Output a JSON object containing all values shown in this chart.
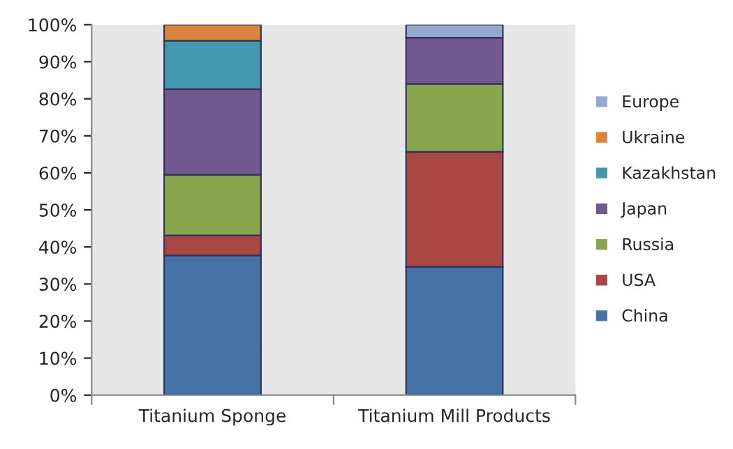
{
  "chart_data": {
    "type": "bar",
    "stacked": true,
    "categories": [
      "Titanium Sponge",
      "Titanium Mill Products"
    ],
    "series": [
      {
        "name": "China",
        "color": "#4572a7",
        "values": [
          37.7,
          34.6
        ]
      },
      {
        "name": "USA",
        "color": "#aa4643",
        "values": [
          5.4,
          31.1
        ]
      },
      {
        "name": "Russia",
        "color": "#89a54e",
        "values": [
          16.4,
          18.3
        ]
      },
      {
        "name": "Japan",
        "color": "#71588f",
        "values": [
          23.1,
          12.5
        ]
      },
      {
        "name": "Kazakhstan",
        "color": "#4198af",
        "values": [
          13.1,
          null
        ]
      },
      {
        "name": "Ukraine",
        "color": "#db843d",
        "values": [
          4.3,
          null
        ]
      },
      {
        "name": "Europe",
        "color": "#93a9cf",
        "values": [
          null,
          3.5
        ]
      }
    ],
    "ylim": [
      0,
      100
    ],
    "yticks": [
      {
        "value": 0,
        "label": "0%"
      },
      {
        "value": 10,
        "label": "10%"
      },
      {
        "value": 20,
        "label": "20%"
      },
      {
        "value": 30,
        "label": "30%"
      },
      {
        "value": 40,
        "label": "40%"
      },
      {
        "value": 50,
        "label": "50%"
      },
      {
        "value": 60,
        "label": "60%"
      },
      {
        "value": 70,
        "label": "70%"
      },
      {
        "value": 80,
        "label": "80%"
      },
      {
        "value": 90,
        "label": "90%"
      },
      {
        "value": 100,
        "label": "100%"
      }
    ],
    "grid": false,
    "legend": "right"
  }
}
